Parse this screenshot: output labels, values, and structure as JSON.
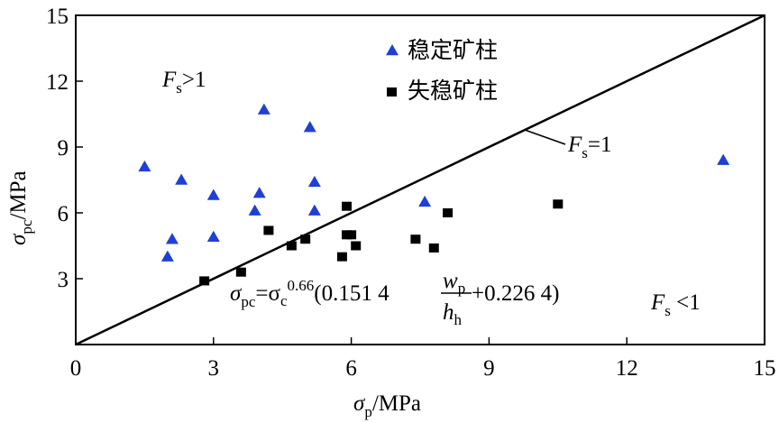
{
  "chart_data": {
    "type": "scatter",
    "title": "",
    "xlabel_main": "σ",
    "xlabel_sub": "p",
    "xlabel_unit": "/MPa",
    "ylabel_main": "σ",
    "ylabel_sub": "pc",
    "ylabel_unit": "/MPa",
    "xlim": [
      0,
      15
    ],
    "ylim": [
      0,
      15
    ],
    "xticks": [
      0,
      3,
      6,
      9,
      12,
      15
    ],
    "yticks": [
      3,
      6,
      9,
      12,
      15
    ],
    "grid": false,
    "legend_position": "top-center",
    "series": [
      {
        "name": "稳定矿柱",
        "marker": "triangle",
        "color": "#1f3fd6",
        "points": [
          [
            1.5,
            8.1
          ],
          [
            2.3,
            7.5
          ],
          [
            3.0,
            6.8
          ],
          [
            4.1,
            10.7
          ],
          [
            4.0,
            6.9
          ],
          [
            5.1,
            9.9
          ],
          [
            5.2,
            7.4
          ],
          [
            3.9,
            6.1
          ],
          [
            5.2,
            6.1
          ],
          [
            2.1,
            4.8
          ],
          [
            3.0,
            4.9
          ],
          [
            2.0,
            4.0
          ],
          [
            7.6,
            6.5
          ],
          [
            14.1,
            8.4
          ]
        ]
      },
      {
        "name": "失稳矿柱",
        "marker": "square",
        "color": "#000000",
        "points": [
          [
            2.8,
            2.9
          ],
          [
            3.6,
            3.3
          ],
          [
            4.2,
            5.2
          ],
          [
            4.7,
            4.5
          ],
          [
            5.0,
            4.8
          ],
          [
            5.9,
            6.3
          ],
          [
            5.9,
            5.0
          ],
          [
            6.0,
            5.0
          ],
          [
            6.1,
            4.5
          ],
          [
            5.8,
            4.0
          ],
          [
            7.4,
            4.8
          ],
          [
            7.8,
            4.4
          ],
          [
            8.1,
            6.0
          ],
          [
            10.5,
            6.4
          ]
        ]
      }
    ],
    "line": {
      "label_main": "F",
      "label_sub": "s",
      "label_rel": "=1",
      "from": [
        0,
        0
      ],
      "to": [
        15,
        15
      ]
    },
    "annotations": {
      "fs_gt_main": "F",
      "fs_gt_sub": "s",
      "fs_gt_rel": ">1",
      "fs_lt_main": "F",
      "fs_lt_sub": "s",
      "fs_lt_rel": " <1",
      "formula": {
        "lhs": "σ",
        "lhs_sub": "pc",
        "eq": "=σ",
        "c_sub": "c",
        "exp": "0.66",
        "open": "(0.151 4 ",
        "num_main": "w",
        "num_sub": "p",
        "den_main": "h",
        "den_sub": "h",
        "close": " +0.226 4)"
      }
    }
  }
}
